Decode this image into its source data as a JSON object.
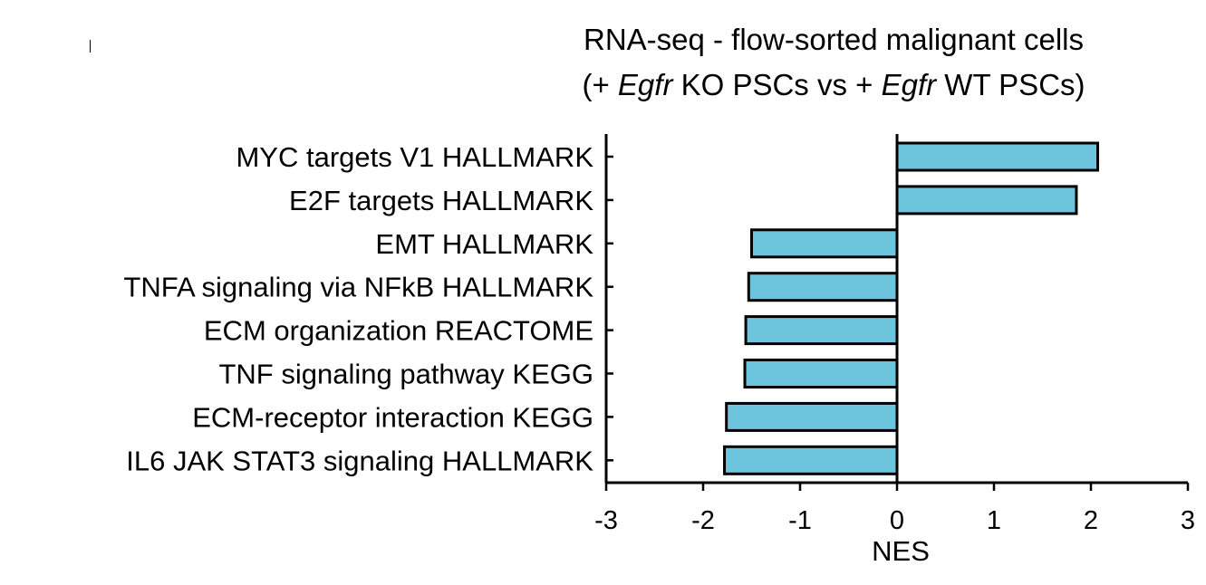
{
  "chart_data": {
    "type": "bar",
    "orientation": "horizontal",
    "title": {
      "line1": "RNA-seq - flow-sorted malignant cells",
      "line2_parts": [
        {
          "text": "(+ ",
          "italic": false
        },
        {
          "text": "Egfr",
          "italic": true
        },
        {
          "text": " KO PSCs  vs + ",
          "italic": false
        },
        {
          "text": "Egfr",
          "italic": true
        },
        {
          "text": " WT PSCs)",
          "italic": false
        }
      ]
    },
    "categories": [
      "MYC targets V1 HALLMARK",
      "E2F targets HALLMARK",
      "EMT HALLMARK",
      "TNFA signaling via NFkB HALLMARK",
      "ECM organization REACTOME",
      "TNF signaling pathway KEGG",
      "ECM-receptor interaction KEGG",
      "IL6 JAK STAT3 signaling HALLMARK"
    ],
    "values": [
      2.07,
      1.85,
      -1.5,
      -1.53,
      -1.56,
      -1.57,
      -1.76,
      -1.78
    ],
    "xlabel": "NES",
    "ylabel": "",
    "xlim": [
      -3,
      3
    ],
    "xticks": [
      -3,
      -2,
      -1,
      0,
      1,
      2,
      3
    ],
    "bar_color": "#6cc5dc",
    "bar_edge_color": "#000000",
    "grid": false,
    "legend": "none"
  }
}
